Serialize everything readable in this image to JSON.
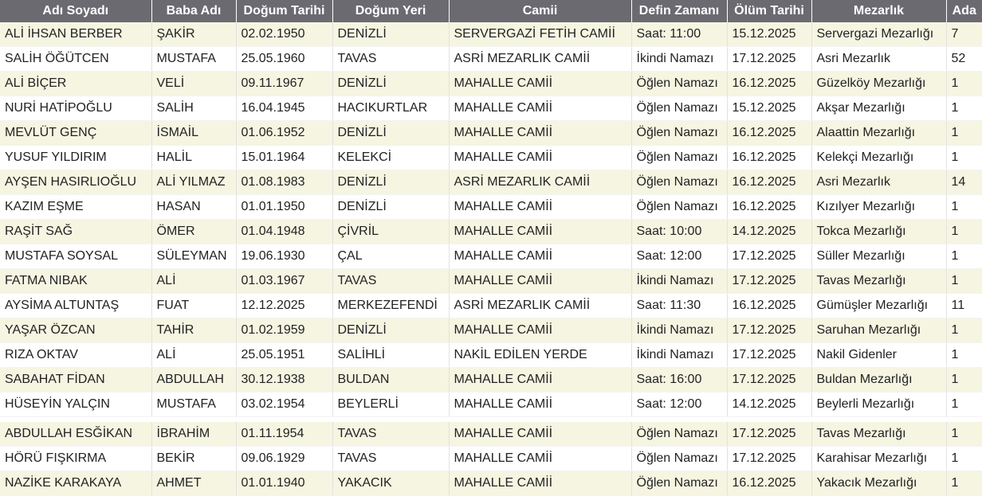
{
  "table": {
    "headers": [
      "Adı Soyadı",
      "Baba Adı",
      "Doğum Tarihi",
      "Doğum Yeri",
      "Camii",
      "Defin Zamanı",
      "Ölüm Tarihi",
      "Mezarlık",
      "Ada"
    ],
    "rows": [
      [
        "ALİ İHSAN BERBER",
        "ŞAKİR",
        "02.02.1950",
        "DENİZLİ",
        "SERVERGAZİ FETİH CAMİİ",
        "Saat: 11:00",
        "15.12.2025",
        "Servergazi Mezarlığı",
        "7"
      ],
      [
        "SALİH ÖĞÜTCEN",
        "MUSTAFA",
        "25.05.1960",
        "TAVAS",
        "ASRİ MEZARLIK CAMİİ",
        "İkindi Namazı",
        "17.12.2025",
        "Asri Mezarlık",
        "52"
      ],
      [
        "ALİ BİÇER",
        "VELİ",
        "09.11.1967",
        "DENİZLİ",
        "MAHALLE CAMİİ",
        "Öğlen Namazı",
        "16.12.2025",
        "Güzelköy Mezarlığı",
        "1"
      ],
      [
        "NURİ HATİPOĞLU",
        "SALİH",
        "16.04.1945",
        "HACIKURTLAR",
        "MAHALLE CAMİİ",
        "Öğlen Namazı",
        "15.12.2025",
        "Akşar Mezarlığı",
        "1"
      ],
      [
        "MEVLÜT GENÇ",
        "İSMAİL",
        "01.06.1952",
        "DENİZLİ",
        "MAHALLE CAMİİ",
        "Öğlen Namazı",
        "16.12.2025",
        "Alaattin Mezarlığı",
        "1"
      ],
      [
        "YUSUF YILDIRIM",
        "HALİL",
        "15.01.1964",
        "KELEKCİ",
        "MAHALLE CAMİİ",
        "Öğlen Namazı",
        "16.12.2025",
        "Kelekçi Mezarlığı",
        "1"
      ],
      [
        "AYŞEN HASIRLIOĞLU",
        "ALİ YILMAZ",
        "01.08.1983",
        "DENİZLİ",
        "ASRİ MEZARLIK CAMİİ",
        "Öğlen Namazı",
        "16.12.2025",
        "Asri Mezarlık",
        "14"
      ],
      [
        "KAZIM EŞME",
        "HASAN",
        "01.01.1950",
        "DENİZLİ",
        "MAHALLE CAMİİ",
        "Öğlen Namazı",
        "16.12.2025",
        "Kızılyer Mezarlığı",
        "1"
      ],
      [
        "RAŞİT SAĞ",
        "ÖMER",
        "01.04.1948",
        "ÇİVRİL",
        "MAHALLE CAMİİ",
        "Saat: 10:00",
        "14.12.2025",
        "Tokca Mezarlığı",
        "1"
      ],
      [
        "MUSTAFA SOYSAL",
        "SÜLEYMAN",
        "19.06.1930",
        "ÇAL",
        "MAHALLE CAMİİ",
        "Saat: 12:00",
        "17.12.2025",
        "Süller Mezarlığı",
        "1"
      ],
      [
        "FATMA NIBAK",
        "ALİ",
        "01.03.1967",
        "TAVAS",
        "MAHALLE CAMİİ",
        "İkindi Namazı",
        "17.12.2025",
        "Tavas Mezarlığı",
        "1"
      ],
      [
        "AYSİMA ALTUNTAŞ",
        "FUAT",
        "12.12.2025",
        "MERKEZEFENDİ",
        "ASRİ MEZARLIK CAMİİ",
        "Saat: 11:30",
        "16.12.2025",
        "Gümüşler Mezarlığı",
        "11"
      ],
      [
        "YAŞAR ÖZCAN",
        "TAHİR",
        "01.02.1959",
        "DENİZLİ",
        "MAHALLE CAMİİ",
        "İkindi Namazı",
        "17.12.2025",
        "Saruhan Mezarlığı",
        "1"
      ],
      [
        "RIZA OKTAV",
        "ALİ",
        "25.05.1951",
        "SALİHLİ",
        "NAKİL EDİLEN YERDE",
        "İkindi Namazı",
        "17.12.2025",
        "Nakil Gidenler",
        "1"
      ],
      [
        "SABAHAT FİDAN",
        "ABDULLAH",
        "30.12.1938",
        "BULDAN",
        "MAHALLE CAMİİ",
        "Saat: 16:00",
        "17.12.2025",
        "Buldan Mezarlığı",
        "1"
      ],
      [
        "HÜSEYİN YALÇIN",
        "MUSTAFA",
        "03.02.1954",
        "BEYLERLİ",
        "MAHALLE CAMİİ",
        "Saat: 12:00",
        "14.12.2025",
        "Beylerli Mezarlığı",
        "1"
      ],
      [
        "ABDULLAH ESĞİKAN",
        "İBRAHİM",
        "01.11.1954",
        "TAVAS",
        "MAHALLE CAMİİ",
        "Öğlen Namazı",
        "17.12.2025",
        "Tavas Mezarlığı",
        "1"
      ],
      [
        "HÖRÜ FIŞKIRMA",
        "BEKİR",
        "09.06.1929",
        "TAVAS",
        "MAHALLE CAMİİ",
        "Öğlen Namazı",
        "17.12.2025",
        "Karahisar Mezarlığı",
        "1"
      ],
      [
        "NAZİKE KARAKAYA",
        "AHMET",
        "01.01.1940",
        "YAKACIK",
        "MAHALLE CAMİİ",
        "Öğlen Namazı",
        "16.12.2025",
        "Yakacık Mezarlığı",
        "1"
      ]
    ]
  },
  "colors": {
    "header_bg": "#6c6a71",
    "header_text": "#ffffff",
    "row_odd_bg": "#f5f5e2",
    "row_even_bg": "#ffffff",
    "cell_text": "#222222"
  }
}
